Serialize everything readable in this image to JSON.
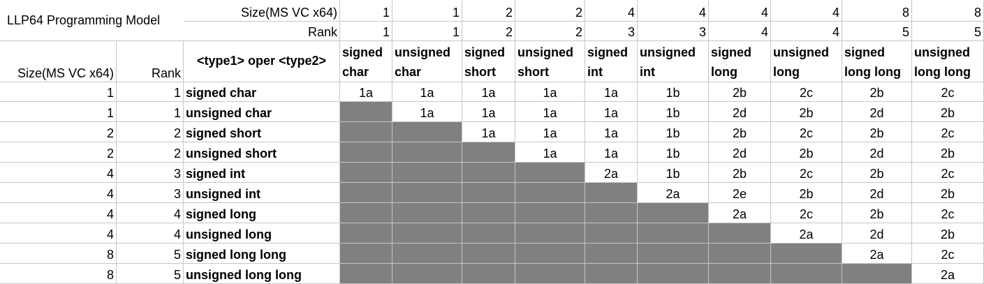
{
  "title": "LLP64 Programming Model",
  "top_header": {
    "size_label": "Size(MS VC x64)",
    "rank_label": "Rank",
    "sizes": [
      "1",
      "1",
      "2",
      "2",
      "4",
      "4",
      "4",
      "4",
      "8",
      "8"
    ],
    "ranks": [
      "1",
      "1",
      "2",
      "2",
      "3",
      "3",
      "4",
      "4",
      "5",
      "5"
    ]
  },
  "col_header": {
    "size_label": "Size(MS VC x64)",
    "rank_label": "Rank",
    "oper_label": "<type1> oper <type2>",
    "types": [
      "signed char",
      "unsigned char",
      "signed short",
      "unsigned short",
      "signed int",
      "unsigned int",
      "signed long",
      "unsigned long",
      "signed long long",
      "unsigned long long"
    ]
  },
  "rows": [
    {
      "size": "1",
      "rank": "1",
      "type": "signed char",
      "cells": [
        "1a",
        "1a",
        "1a",
        "1a",
        "1a",
        "1b",
        "2b",
        "2c",
        "2b",
        "2c"
      ]
    },
    {
      "size": "1",
      "rank": "1",
      "type": "unsigned char",
      "cells": [
        "",
        "1a",
        "1a",
        "1a",
        "1a",
        "1b",
        "2d",
        "2b",
        "2d",
        "2b"
      ]
    },
    {
      "size": "2",
      "rank": "2",
      "type": "signed short",
      "cells": [
        "",
        "",
        "1a",
        "1a",
        "1a",
        "1b",
        "2b",
        "2c",
        "2b",
        "2c"
      ]
    },
    {
      "size": "2",
      "rank": "2",
      "type": "unsigned short",
      "cells": [
        "",
        "",
        "",
        "1a",
        "1a",
        "1b",
        "2d",
        "2b",
        "2d",
        "2b"
      ]
    },
    {
      "size": "4",
      "rank": "3",
      "type": "signed int",
      "cells": [
        "",
        "",
        "",
        "",
        "2a",
        "1b",
        "2b",
        "2c",
        "2b",
        "2c"
      ]
    },
    {
      "size": "4",
      "rank": "3",
      "type": "unsigned int",
      "cells": [
        "",
        "",
        "",
        "",
        "",
        "2a",
        "2e",
        "2b",
        "2d",
        "2b"
      ]
    },
    {
      "size": "4",
      "rank": "4",
      "type": "signed long",
      "cells": [
        "",
        "",
        "",
        "",
        "",
        "",
        "2a",
        "2c",
        "2b",
        "2c"
      ]
    },
    {
      "size": "4",
      "rank": "4",
      "type": "unsigned long",
      "cells": [
        "",
        "",
        "",
        "",
        "",
        "",
        "",
        "2a",
        "2d",
        "2b"
      ]
    },
    {
      "size": "8",
      "rank": "5",
      "type": "signed long long",
      "cells": [
        "",
        "",
        "",
        "",
        "",
        "",
        "",
        "",
        "2a",
        "2c"
      ]
    },
    {
      "size": "8",
      "rank": "5",
      "type": "unsigned long long",
      "cells": [
        "",
        "",
        "",
        "",
        "",
        "",
        "",
        "",
        "",
        "2a"
      ]
    }
  ],
  "colors": {
    "shaded": "#808080",
    "grid": "#c6c6c6"
  }
}
